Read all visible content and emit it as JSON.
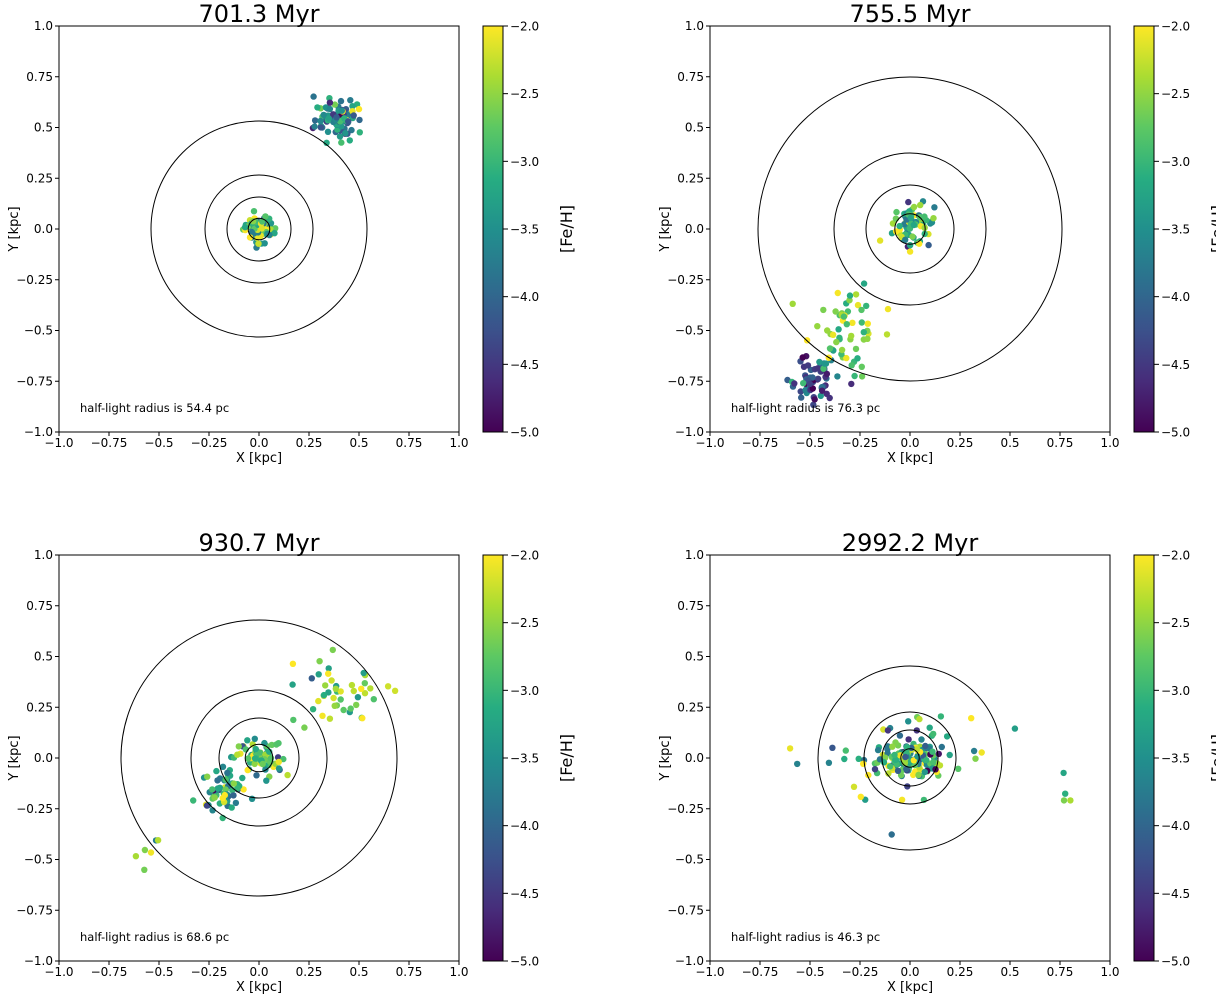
{
  "chart_data": [
    {
      "type": "scatter",
      "title": "701.3 Myr",
      "xlabel": "X [kpc]",
      "ylabel": "Y [kpc]",
      "xlim": [
        -1.0,
        1.0
      ],
      "ylim": [
        -1.0,
        1.0
      ],
      "x_ticks": [
        "-1.0",
        "-0.75",
        "-0.5",
        "-0.25",
        "0.0",
        "0.25",
        "0.5",
        "0.75",
        "1.0"
      ],
      "y_ticks": [
        "-1.0",
        "-0.75",
        "-0.5",
        "-0.25",
        "0.0",
        "0.25",
        "0.5",
        "0.75",
        "1.0"
      ],
      "colorbar_label": "[Fe/H]",
      "colorbar_range": [
        -5.0,
        -2.0
      ],
      "colorbar_ticks": [
        "-5.0",
        "-4.5",
        "-4.0",
        "-3.5",
        "-3.0",
        "-2.5",
        "-2.0"
      ],
      "colormap": "viridis",
      "circle_radii_kpc": [
        0.054,
        0.16,
        0.27,
        0.54
      ],
      "annotation": "half-light radius is 54.4 pc",
      "clumps": [
        {
          "cx": 0.0,
          "cy": 0.0,
          "sx": 0.04,
          "sy": 0.035,
          "n": 70,
          "feh_mean": -3.0,
          "feh_sd": 0.6
        },
        {
          "cx": 0.4,
          "cy": 0.54,
          "sx": 0.06,
          "sy": 0.05,
          "n": 85,
          "feh_mean": -3.6,
          "feh_sd": 0.65
        }
      ]
    },
    {
      "type": "scatter",
      "title": "755.5 Myr",
      "xlabel": "X [kpc]",
      "ylabel": "Y [kpc]",
      "xlim": [
        -1.0,
        1.0
      ],
      "ylim": [
        -1.0,
        1.0
      ],
      "x_ticks": [
        "-1.0",
        "-0.75",
        "-0.5",
        "-0.25",
        "0.0",
        "0.25",
        "0.5",
        "0.75",
        "1.0"
      ],
      "y_ticks": [
        "-1.0",
        "-0.75",
        "-0.5",
        "-0.25",
        "0.0",
        "0.25",
        "0.5",
        "0.75",
        "1.0"
      ],
      "colorbar_label": "[Fe/H]",
      "colorbar_range": [
        -5.0,
        -2.0
      ],
      "colorbar_ticks": [
        "-5.0",
        "-4.5",
        "-4.0",
        "-3.5",
        "-3.0",
        "-2.5",
        "-2.0"
      ],
      "colormap": "viridis",
      "circle_radii_kpc": [
        0.076,
        0.22,
        0.38,
        0.76
      ],
      "annotation": "half-light radius is 76.3 pc",
      "clumps": [
        {
          "cx": 0.02,
          "cy": 0.02,
          "sx": 0.05,
          "sy": 0.05,
          "n": 70,
          "feh_mean": -3.0,
          "feh_sd": 0.6
        },
        {
          "cx": -0.49,
          "cy": -0.74,
          "sx": 0.06,
          "sy": 0.06,
          "n": 60,
          "feh_mean": -4.3,
          "feh_sd": 0.6
        },
        {
          "cx": -0.33,
          "cy": -0.48,
          "sx": 0.09,
          "sy": 0.11,
          "n": 60,
          "feh_mean": -2.6,
          "feh_sd": 0.4
        }
      ]
    },
    {
      "type": "scatter",
      "title": "930.7 Myr",
      "xlabel": "X [kpc]",
      "ylabel": "Y [kpc]",
      "xlim": [
        -1.0,
        1.0
      ],
      "ylim": [
        -1.0,
        1.0
      ],
      "x_ticks": [
        "-1.0",
        "-0.75",
        "-0.5",
        "-0.25",
        "0.0",
        "0.25",
        "0.5",
        "0.75",
        "1.0"
      ],
      "y_ticks": [
        "-1.0",
        "-0.75",
        "-0.5",
        "-0.25",
        "0.0",
        "0.25",
        "0.5",
        "0.75",
        "1.0"
      ],
      "colorbar_label": "[Fe/H]",
      "colorbar_range": [
        -5.0,
        -2.0
      ],
      "colorbar_ticks": [
        "-5.0",
        "-4.5",
        "-4.0",
        "-3.5",
        "-3.0",
        "-2.5",
        "-2.0"
      ],
      "colormap": "viridis",
      "circle_radii_kpc": [
        0.069,
        0.2,
        0.34,
        0.69
      ],
      "annotation": "half-light radius is 68.6 pc",
      "clumps": [
        {
          "cx": 0.0,
          "cy": 0.0,
          "sx": 0.06,
          "sy": 0.05,
          "n": 70,
          "feh_mean": -3.0,
          "feh_sd": 0.6
        },
        {
          "cx": -0.18,
          "cy": -0.15,
          "sx": 0.06,
          "sy": 0.05,
          "n": 60,
          "feh_mean": -3.2,
          "feh_sd": 0.7
        },
        {
          "cx": 0.4,
          "cy": 0.32,
          "sx": 0.12,
          "sy": 0.09,
          "n": 45,
          "feh_mean": -2.8,
          "feh_sd": 0.5
        },
        {
          "cx": -0.56,
          "cy": -0.46,
          "sx": 0.03,
          "sy": 0.05,
          "n": 6,
          "feh_mean": -2.8,
          "feh_sd": 0.5
        }
      ]
    },
    {
      "type": "scatter",
      "title": "2992.2 Myr",
      "xlabel": "X [kpc]",
      "ylabel": "Y [kpc]",
      "xlim": [
        -1.0,
        1.0
      ],
      "ylim": [
        -1.0,
        1.0
      ],
      "x_ticks": [
        "-1.0",
        "-0.75",
        "-0.5",
        "-0.25",
        "0.0",
        "0.25",
        "0.5",
        "0.75",
        "1.0"
      ],
      "y_ticks": [
        "-1.0",
        "-0.75",
        "-0.5",
        "-0.25",
        "0.0",
        "0.25",
        "0.5",
        "0.75",
        "1.0"
      ],
      "colorbar_label": "[Fe/H]",
      "colorbar_range": [
        -5.0,
        -2.0
      ],
      "colorbar_ticks": [
        "-5.0",
        "-4.5",
        "-4.0",
        "-3.5",
        "-3.0",
        "-2.5",
        "-2.0"
      ],
      "colormap": "viridis",
      "circle_radii_kpc": [
        0.046,
        0.14,
        0.23,
        0.46
      ],
      "annotation": "half-light radius is 46.3 pc",
      "clumps": [
        {
          "cx": 0.0,
          "cy": 0.0,
          "sx": 0.07,
          "sy": 0.04,
          "n": 110,
          "feh_mean": -3.0,
          "feh_sd": 0.7
        },
        {
          "cx": 0.0,
          "cy": 0.0,
          "sx": 0.2,
          "sy": 0.12,
          "n": 70,
          "feh_mean": -3.3,
          "feh_sd": 0.8
        },
        {
          "cx": 0.77,
          "cy": -0.14,
          "sx": 0.02,
          "sy": 0.05,
          "n": 4,
          "feh_mean": -3.0,
          "feh_sd": 0.3
        }
      ]
    }
  ]
}
